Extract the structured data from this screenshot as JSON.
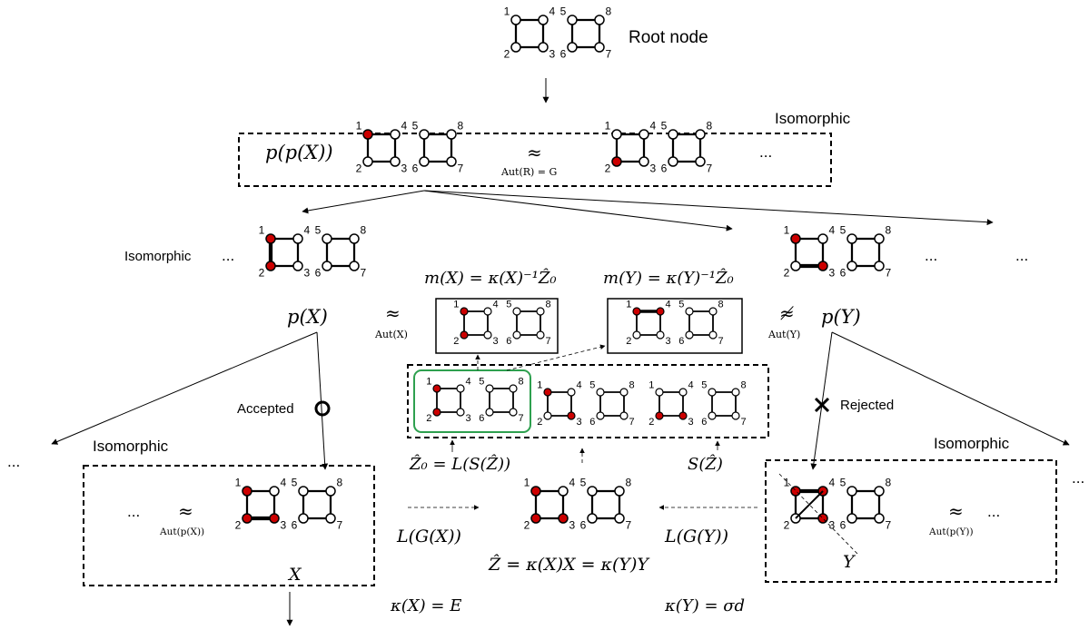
{
  "labels": {
    "root_node": "Root node",
    "isomorphic": "Isomorphic",
    "accepted": "Accepted",
    "rejected": "Rejected",
    "ellipsis": "..."
  },
  "math": {
    "ppx": "p(p(X))",
    "aut_r": "Aut(R) = G",
    "px": "p(X)",
    "py": "p(Y)",
    "aut_x": "Aut(X)",
    "aut_y": "Aut(Y)",
    "mx": "m(X) = κ(X)⁻¹Ẑ₀",
    "my": "m(Y) = κ(Y)⁻¹Ẑ₀",
    "z0": "Ẑ₀ = L(S(Ẑ))",
    "sz": "S(Ẑ)",
    "lgx": "L(G(X))",
    "lgy": "L(G(Y))",
    "zhat": "Ẑ = κ(X)X = κ(Y)Y",
    "kx": "κ(X) = E",
    "ky": "κ(Y) = σd",
    "x": "X",
    "y": "Y",
    "aut_ppx": "Aut(p(X))",
    "aut_ppy": "Aut(p(Y))",
    "approx": "≈",
    "napprox": "≉"
  },
  "colors": {
    "filled_node": "#cc0000",
    "box_green": "#2ea04f",
    "line": "#000000"
  }
}
